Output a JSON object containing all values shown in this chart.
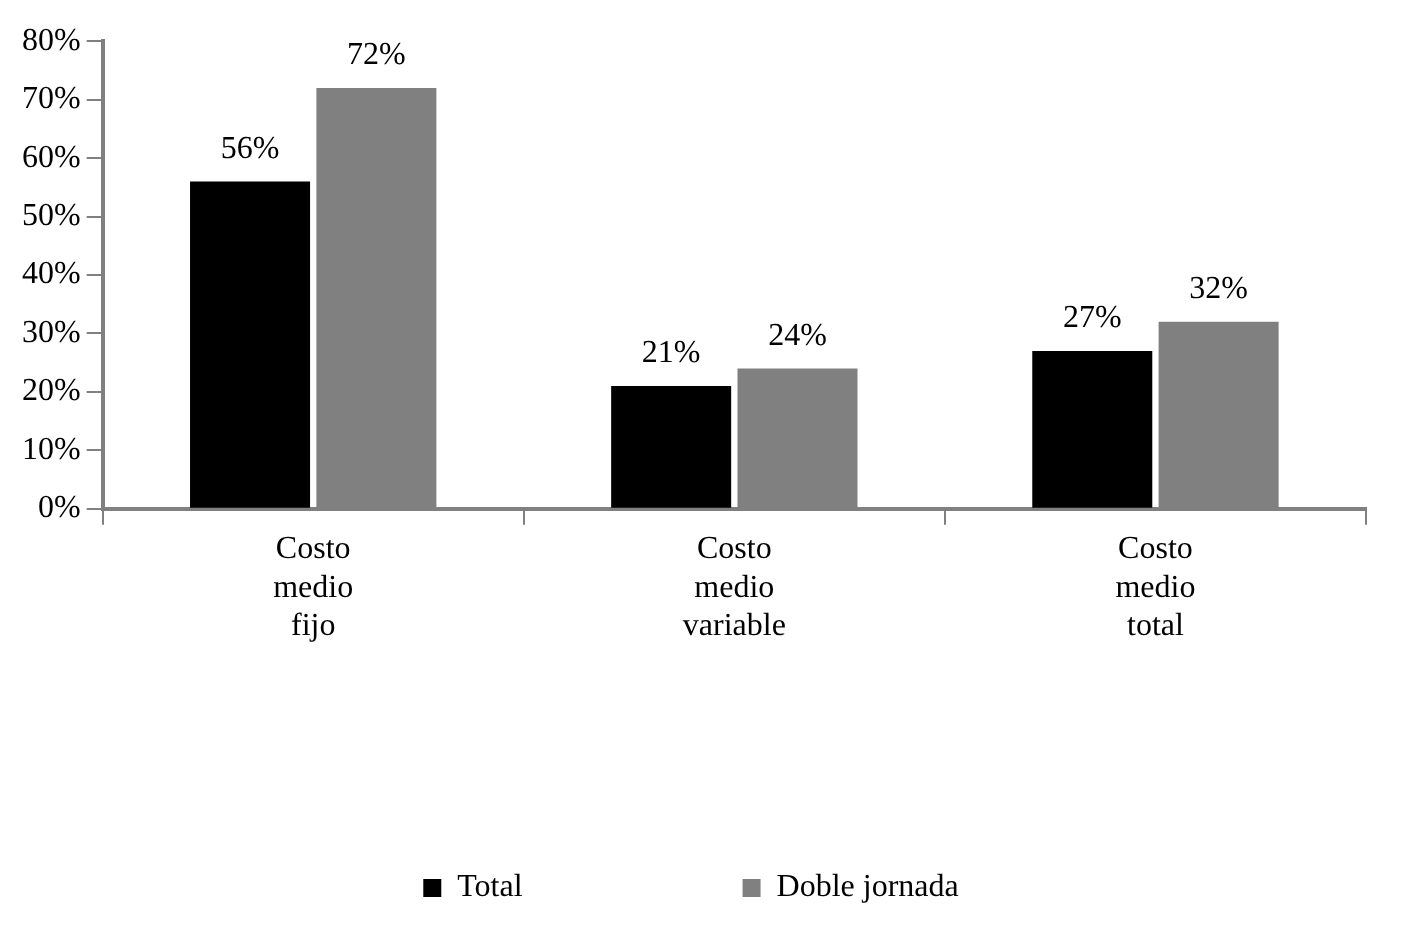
{
  "chart_data": {
    "type": "bar",
    "categories": [
      "Costo medio fijo",
      "Costo medio variable",
      "Costo medio total"
    ],
    "series": [
      {
        "name": "Total",
        "color": "#000000",
        "values": [
          56,
          21,
          27
        ],
        "value_labels": [
          "56%",
          "21%",
          "27%"
        ]
      },
      {
        "name": "Doble jornada",
        "color": "#808080",
        "values": [
          72,
          24,
          32
        ],
        "value_labels": [
          "72%",
          "24%",
          "32%"
        ]
      }
    ],
    "ylim": [
      0,
      80
    ],
    "yticks": [
      {
        "value": 0,
        "label": "0%"
      },
      {
        "value": 10,
        "label": "10%"
      },
      {
        "value": 20,
        "label": "20%"
      },
      {
        "value": 30,
        "label": "30%"
      },
      {
        "value": 40,
        "label": "40%"
      },
      {
        "value": 50,
        "label": "50%"
      },
      {
        "value": 60,
        "label": "60%"
      },
      {
        "value": 70,
        "label": "70%"
      },
      {
        "value": 80,
        "label": "80%"
      }
    ],
    "grid": false,
    "legend": "bottom"
  }
}
